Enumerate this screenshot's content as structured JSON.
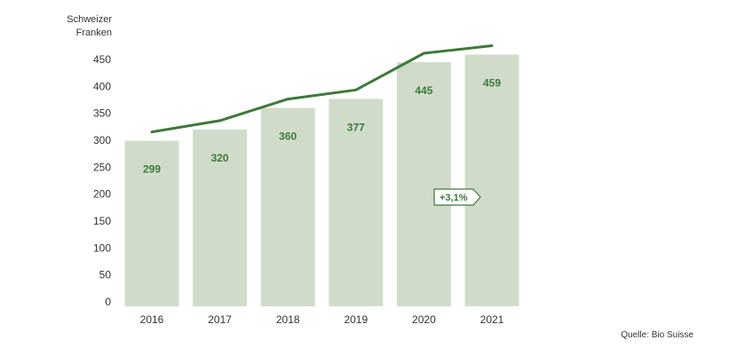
{
  "chart_data": {
    "type": "bar",
    "ylabel_line1": "Schweizer",
    "ylabel_line2": "Franken",
    "categories": [
      "2016",
      "2017",
      "2018",
      "2019",
      "2020",
      "2021"
    ],
    "values": [
      299,
      320,
      360,
      377,
      445,
      459
    ],
    "value_labels": [
      "299",
      "320",
      "360",
      "377",
      "445",
      "459"
    ],
    "line_values": [
      299,
      320,
      360,
      377,
      445,
      459
    ],
    "ylim": [
      0,
      450
    ],
    "yticks": [
      "0",
      "50",
      "100",
      "150",
      "200",
      "250",
      "300",
      "350",
      "400",
      "450"
    ],
    "annotation": "+3,1%",
    "grid": false,
    "colors": {
      "bar": "#d0dcc9",
      "line": "#3d7a3a",
      "label": "#3d7a3a",
      "tick": "#333333"
    }
  },
  "source": "Quelle: Bio Suisse"
}
